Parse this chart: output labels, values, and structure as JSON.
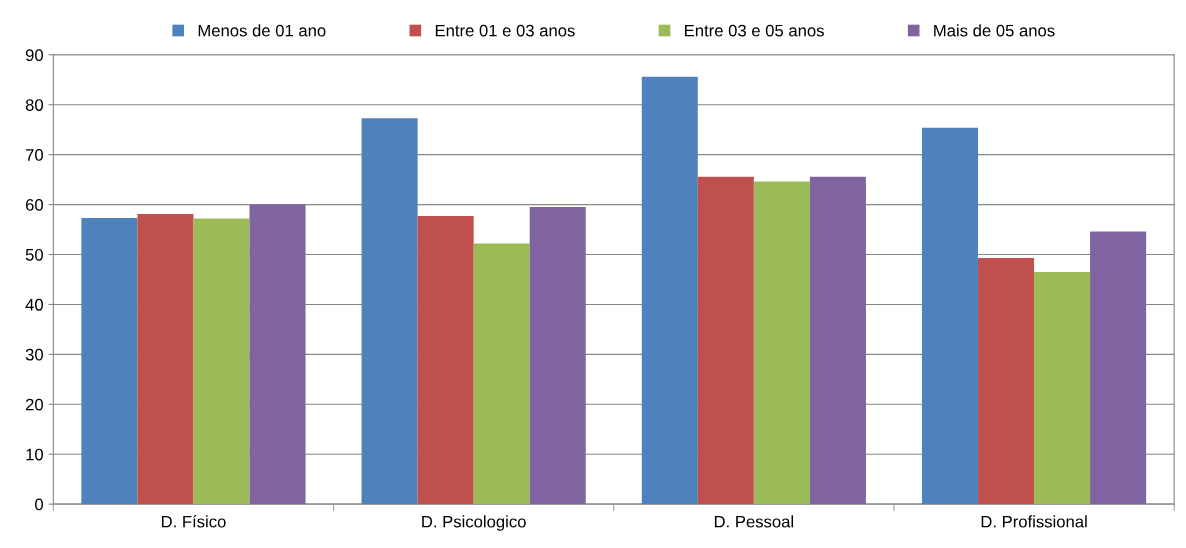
{
  "chart_data": {
    "type": "bar",
    "categories": [
      "D. Físico",
      "D. Psicologico",
      "D. Pessoal",
      "D. Profissional"
    ],
    "series": [
      {
        "name": "Menos de 01 ano",
        "color": "#4f81bd",
        "values": [
          57.3,
          77.3,
          85.6,
          75.4
        ]
      },
      {
        "name": "Entre 01 e 03 anos",
        "color": "#c0504d",
        "values": [
          58.1,
          57.7,
          65.6,
          49.3
        ]
      },
      {
        "name": "Entre 03 e 05 anos",
        "color": "#9bbb59",
        "values": [
          57.2,
          52.2,
          64.6,
          46.5
        ]
      },
      {
        "name": "Mais de 05 anos",
        "color": "#8064a2",
        "values": [
          60.0,
          59.5,
          65.6,
          54.6
        ]
      }
    ],
    "ylim": [
      0,
      90
    ],
    "yticks": [
      0,
      10,
      20,
      30,
      40,
      50,
      60,
      70,
      80,
      90
    ],
    "grid": "y",
    "legend": "top"
  }
}
